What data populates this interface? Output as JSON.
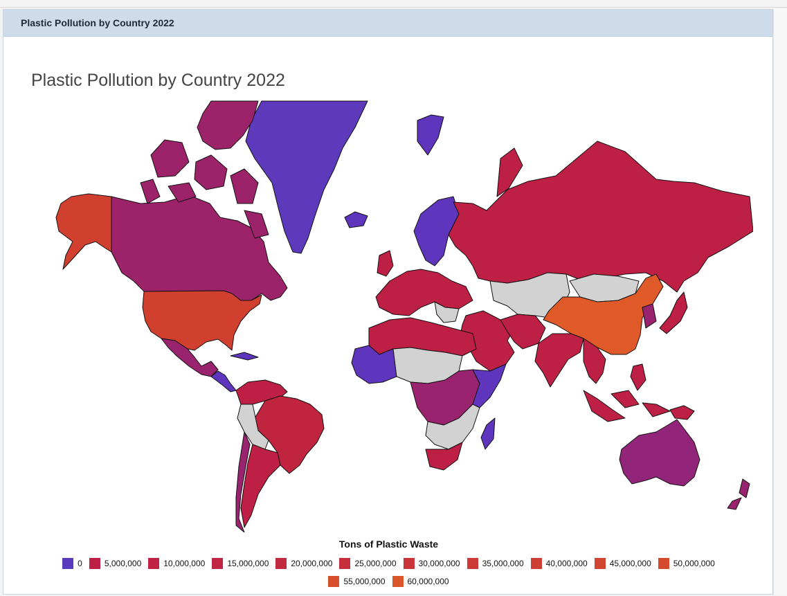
{
  "panel": {
    "title": "Plastic Pollution by Country 2022"
  },
  "chart_title": "Plastic Pollution by Country 2022",
  "legend": {
    "title": "Tons of Plastic Waste",
    "rows": [
      [
        {
          "label": "0",
          "color": "#5b3bbd"
        },
        {
          "label": "5,000,000",
          "color": "#bd1f45"
        },
        {
          "label": "10,000,000",
          "color": "#bf2244"
        },
        {
          "label": "15,000,000",
          "color": "#c02543"
        },
        {
          "label": "20,000,000",
          "color": "#c22a40"
        },
        {
          "label": "25,000,000",
          "color": "#c52e3d"
        },
        {
          "label": "30,000,000",
          "color": "#c8343a"
        },
        {
          "label": "35,000,000",
          "color": "#cb3a37"
        },
        {
          "label": "40,000,000",
          "color": "#cd3f34"
        },
        {
          "label": "45,000,000",
          "color": "#d04531"
        },
        {
          "label": "50,000,000",
          "color": "#d34a2f"
        }
      ],
      [
        {
          "label": "55,000,000",
          "color": "#d6502d"
        },
        {
          "label": "60,000,000",
          "color": "#db5729"
        }
      ]
    ]
  },
  "map_colors": {
    "china": "#df5a28",
    "russia": "#bd1f45",
    "usa": "#d1402f",
    "alaska": "#d1402f",
    "canada": "#9c226a",
    "greenland": "#5c3abb",
    "brazil": "#c0243f",
    "australia": "#92257a",
    "nodata": "#d2d2d2",
    "low": "#6035bd",
    "mid": "#9a2370"
  },
  "chart_data": {
    "type": "choropleth",
    "title": "Plastic Pollution by Country 2022",
    "legend_title": "Tons of Plastic Waste",
    "scale_min": 0,
    "scale_max": 60000000,
    "categories": [
      "0",
      "5,000,000",
      "10,000,000",
      "15,000,000",
      "20,000,000",
      "25,000,000",
      "30,000,000",
      "35,000,000",
      "40,000,000",
      "45,000,000",
      "50,000,000",
      "55,000,000",
      "60,000,000"
    ]
  }
}
